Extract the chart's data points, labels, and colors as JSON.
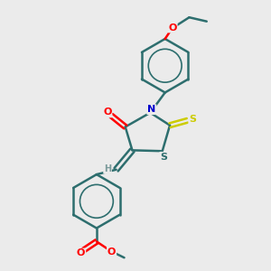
{
  "title": "",
  "bg_color": "#ebebeb",
  "bond_color": "#2d6e6e",
  "atom_colors": {
    "O": "#ff0000",
    "N": "#0000cc",
    "S_thioxo": "#cccc00",
    "S_ring": "#2d6e6e",
    "H": "#7a9a9a",
    "C": "#2d6e6e"
  },
  "figsize": [
    3.0,
    3.0
  ],
  "dpi": 100
}
